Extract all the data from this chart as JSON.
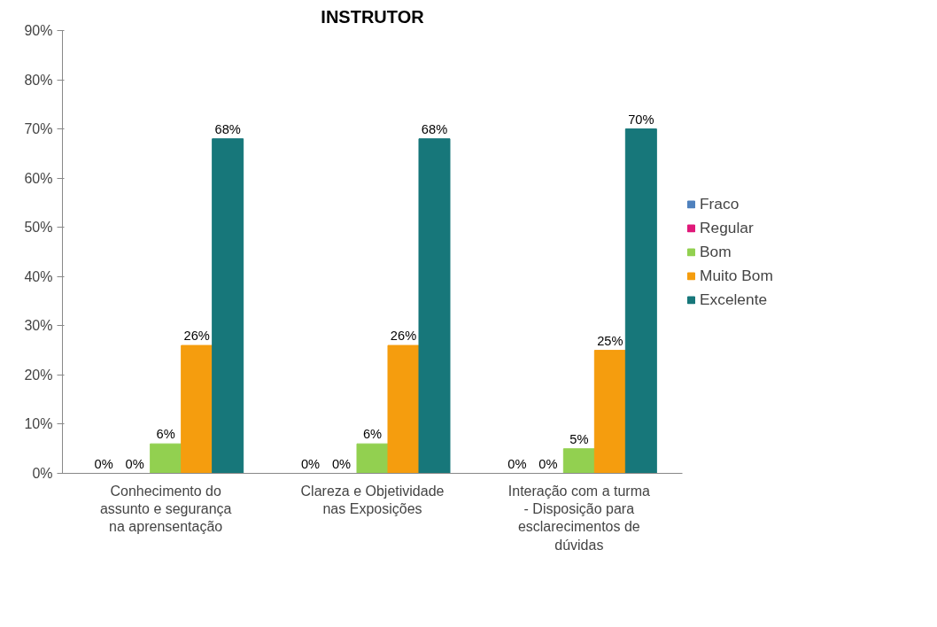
{
  "chart_data": {
    "type": "bar",
    "title": "INSTRUTOR",
    "categories": [
      "Conhecimento do\nassunto e segurança\nna aprensentação",
      "Clareza e Objetividade\nnas Exposições",
      "Interação com a turma\n- Disposição para\nesclarecimentos de\ndúvidas"
    ],
    "series": [
      {
        "name": "Fraco",
        "color": "#4f81bd",
        "values": [
          0,
          0,
          0
        ],
        "value_labels": [
          "0%",
          "0%",
          "0%"
        ]
      },
      {
        "name": "Regular",
        "color": "#e0197a",
        "values": [
          0,
          0,
          0
        ],
        "value_labels": [
          "0%",
          "0%",
          "0%"
        ]
      },
      {
        "name": "Bom",
        "color": "#92d050",
        "values": [
          6,
          6,
          5
        ],
        "value_labels": [
          "6%",
          "6%",
          "5%"
        ]
      },
      {
        "name": "Muito Bom",
        "color": "#f59d0e",
        "values": [
          26,
          26,
          25
        ],
        "value_labels": [
          "26%",
          "26%",
          "25%"
        ]
      },
      {
        "name": "Excelente",
        "color": "#17777a",
        "values": [
          68,
          68,
          70
        ],
        "value_labels": [
          "68%",
          "68%",
          "70%"
        ]
      }
    ],
    "ylim": [
      0,
      90
    ],
    "yticks": [
      {
        "value": 0,
        "label": "0%"
      },
      {
        "value": 10,
        "label": "10%"
      },
      {
        "value": 20,
        "label": "20%"
      },
      {
        "value": 30,
        "label": "30%"
      },
      {
        "value": 40,
        "label": "40%"
      },
      {
        "value": 50,
        "label": "50%"
      },
      {
        "value": 60,
        "label": "60%"
      },
      {
        "value": 70,
        "label": "70%"
      },
      {
        "value": 80,
        "label": "80%"
      },
      {
        "value": 90,
        "label": "90%"
      }
    ],
    "grid": false,
    "legend": "right"
  }
}
